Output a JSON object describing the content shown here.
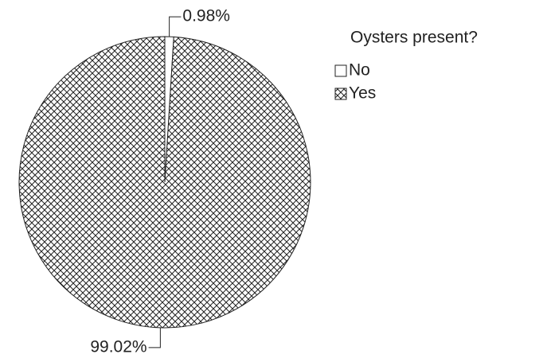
{
  "chart_data": {
    "type": "pie",
    "legend_title": "Oysters present?",
    "categories": [
      "No",
      "Yes"
    ],
    "values": [
      0.98,
      99.02
    ],
    "value_labels": [
      "0.98%",
      "99.02%"
    ],
    "fills": [
      "white",
      "crosshatch"
    ],
    "legend": "right"
  }
}
